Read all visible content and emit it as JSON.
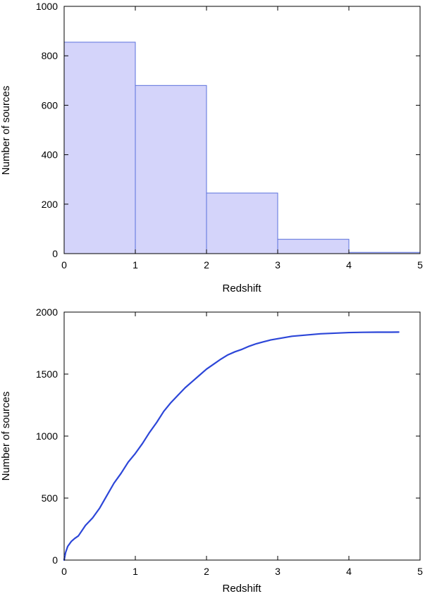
{
  "chart_data": [
    {
      "type": "bar",
      "variant": "histogram",
      "title": "",
      "xlabel": "Redshift",
      "ylabel": "Number of sources",
      "xlim": [
        0,
        5
      ],
      "ylim": [
        0,
        1000
      ],
      "xticks": [
        "0",
        "1",
        "2",
        "3",
        "4",
        "5"
      ],
      "yticks": [
        "0",
        "200",
        "400",
        "600",
        "800",
        "1000"
      ],
      "bins": [
        {
          "x0": 0,
          "x1": 1,
          "value": 855
        },
        {
          "x0": 1,
          "x1": 2,
          "value": 680
        },
        {
          "x0": 2,
          "x1": 3,
          "value": 245
        },
        {
          "x0": 3,
          "x1": 4,
          "value": 58
        },
        {
          "x0": 4,
          "x1": 5,
          "value": 5
        }
      ],
      "grid": false,
      "colors": {
        "fill": "#d4d4fa",
        "edge": "#5a70dc"
      }
    },
    {
      "type": "line",
      "variant": "cumulative",
      "title": "",
      "xlabel": "Redshift",
      "ylabel": "Number of sources",
      "xlim": [
        0,
        5
      ],
      "ylim": [
        0,
        2000
      ],
      "xticks": [
        "0",
        "1",
        "2",
        "3",
        "4",
        "5"
      ],
      "yticks": [
        "0",
        "500",
        "1000",
        "1500",
        "2000"
      ],
      "series": [
        {
          "x": [
            0,
            0.02,
            0.05,
            0.1,
            0.15,
            0.2,
            0.3,
            0.4,
            0.5,
            0.6,
            0.7,
            0.8,
            0.9,
            1.0,
            1.1,
            1.2,
            1.3,
            1.4,
            1.5,
            1.6,
            1.7,
            1.8,
            1.9,
            2.0,
            2.1,
            2.2,
            2.3,
            2.4,
            2.5,
            2.6,
            2.7,
            2.8,
            2.9,
            3.0,
            3.2,
            3.4,
            3.6,
            3.8,
            4.0,
            4.2,
            4.4,
            4.6,
            4.7
          ],
          "y": [
            0,
            60,
            110,
            150,
            175,
            195,
            280,
            340,
            420,
            520,
            620,
            700,
            790,
            860,
            940,
            1030,
            1110,
            1200,
            1270,
            1330,
            1390,
            1440,
            1490,
            1540,
            1580,
            1620,
            1655,
            1680,
            1700,
            1725,
            1745,
            1760,
            1775,
            1785,
            1805,
            1815,
            1825,
            1830,
            1835,
            1837,
            1838,
            1838,
            1839
          ]
        }
      ],
      "grid": false,
      "colors": {
        "line": "#2c46d8"
      }
    }
  ]
}
